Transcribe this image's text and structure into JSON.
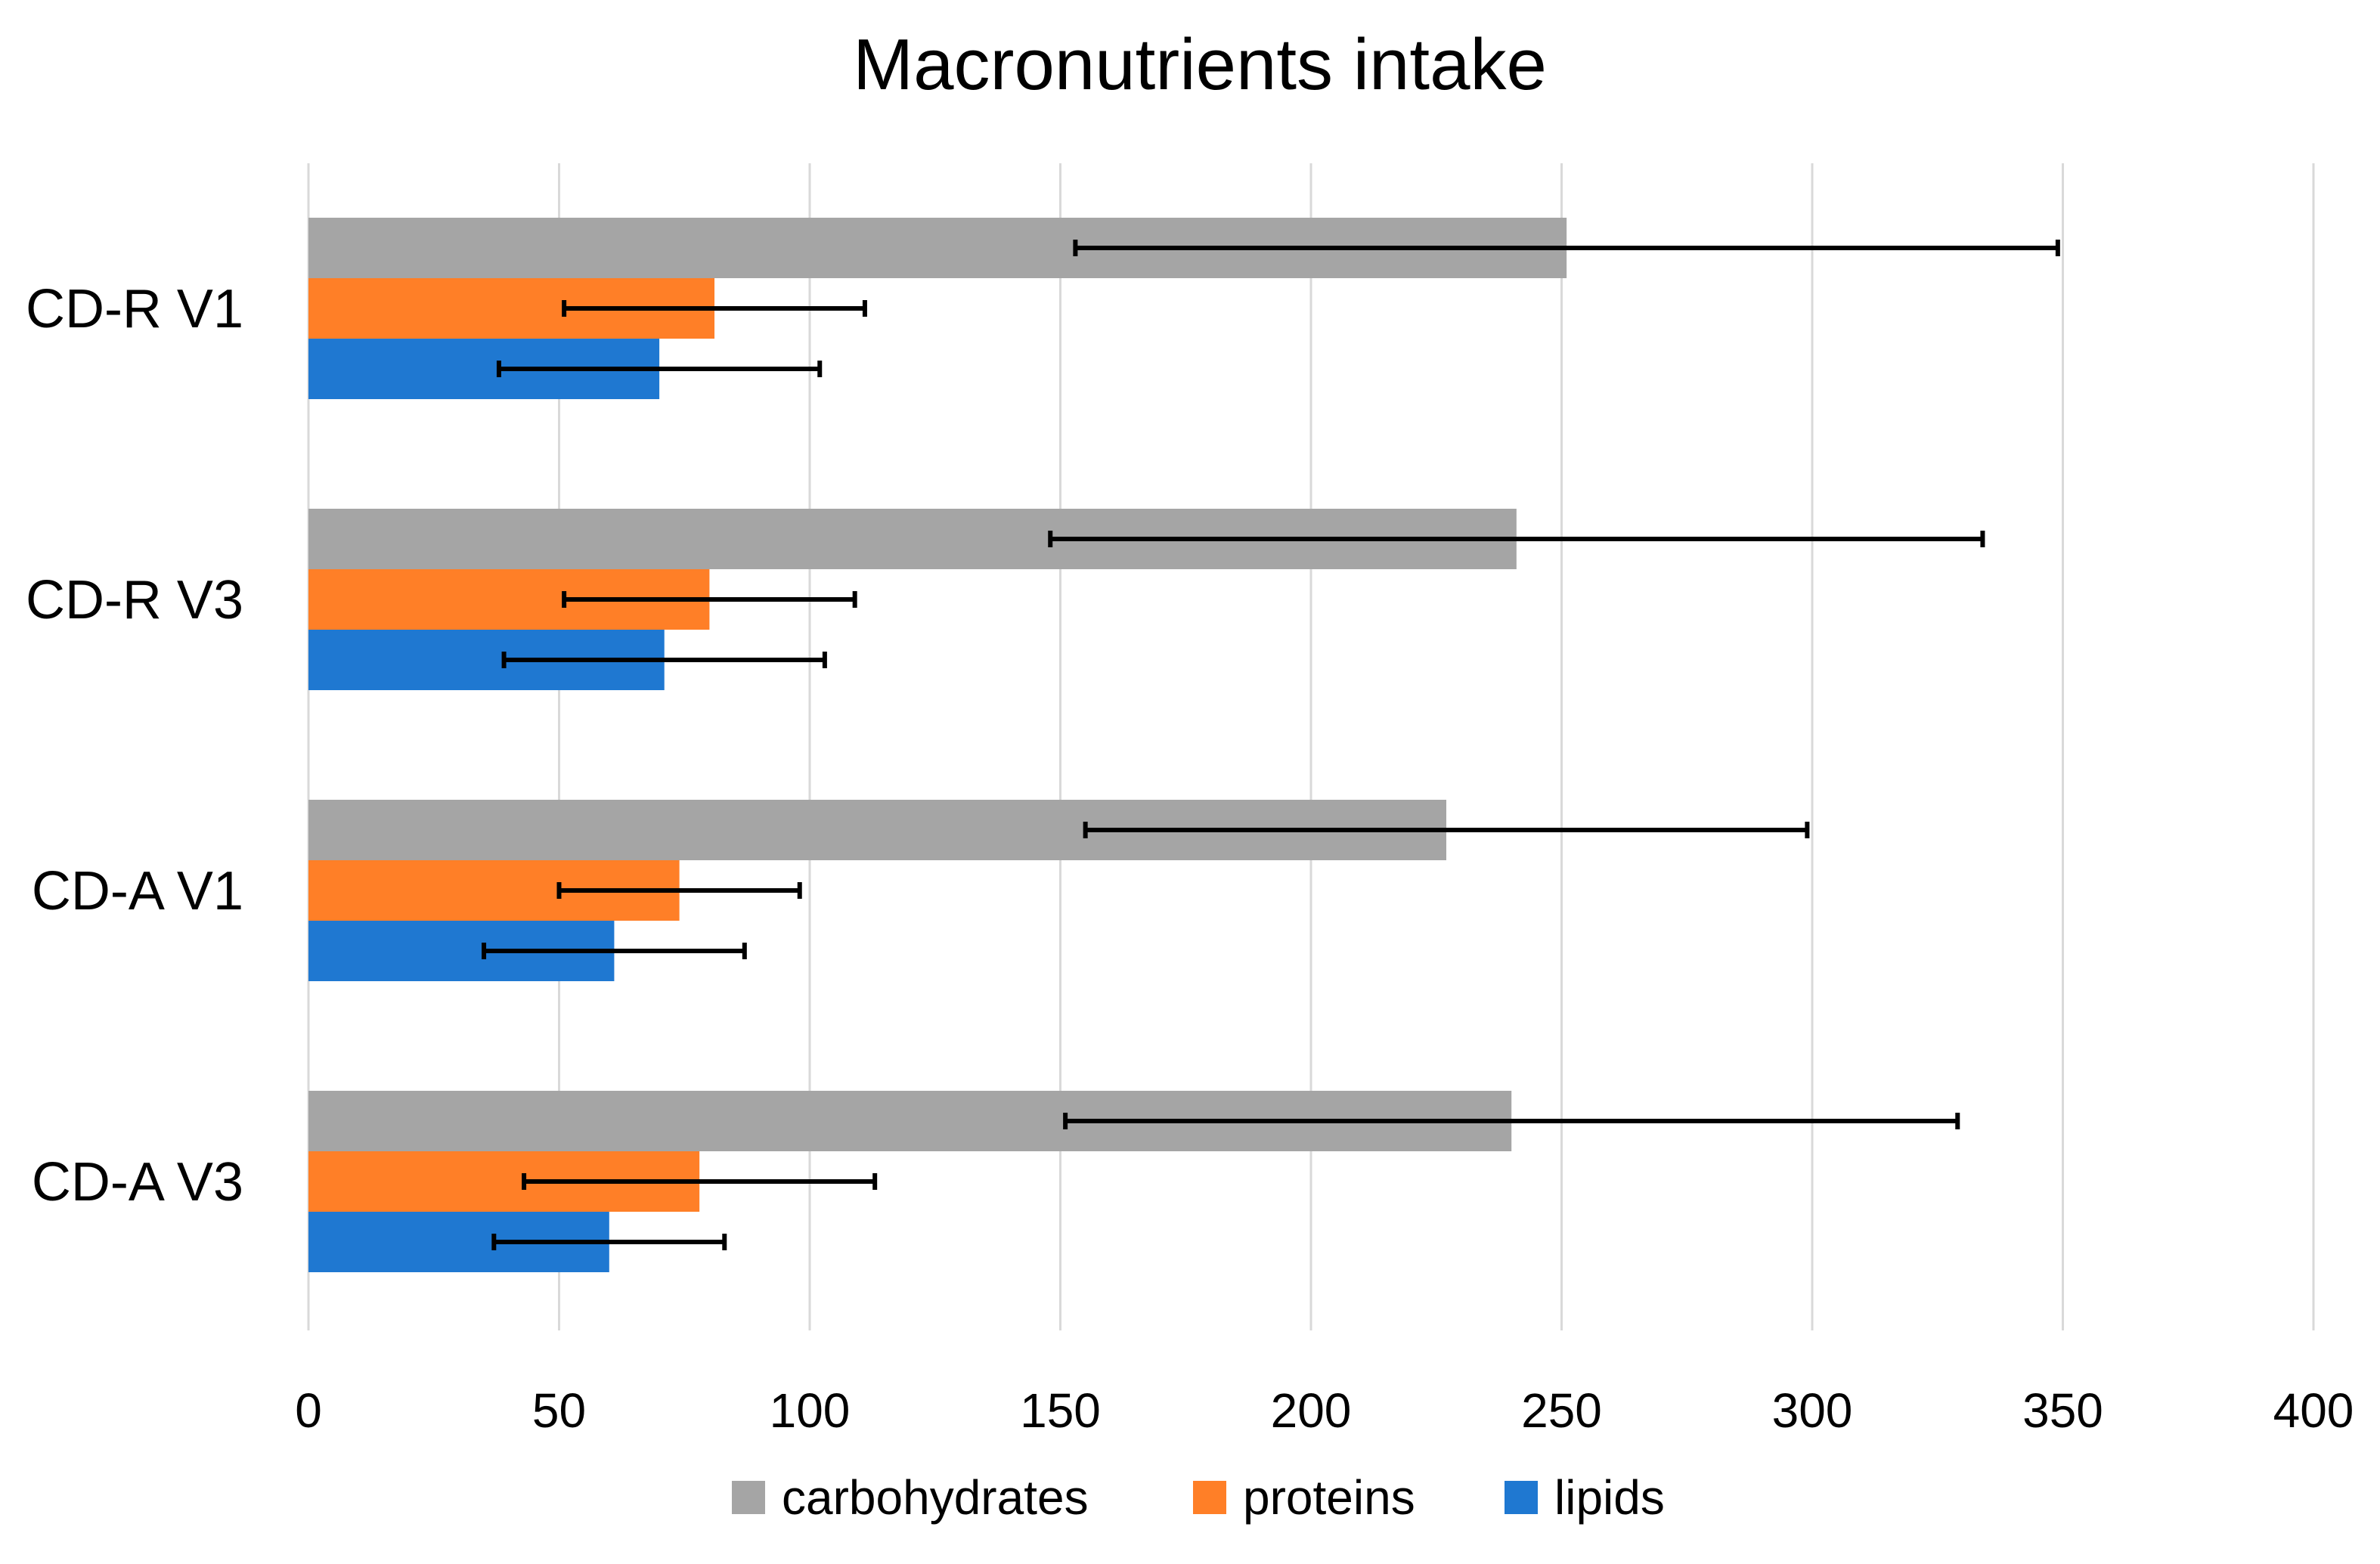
{
  "chart_data": {
    "type": "bar",
    "orientation": "horizontal",
    "title": "Macronutrients intake",
    "xlabel": "",
    "ylabel": "",
    "xlim": [
      0,
      400
    ],
    "xticks": [
      0,
      50,
      100,
      150,
      200,
      250,
      300,
      350,
      400
    ],
    "xtick_labels": [
      "0",
      "50",
      "100",
      "150",
      "200",
      "250",
      "300",
      "350",
      "400"
    ],
    "grid": true,
    "legend_position": "bottom",
    "categories": [
      "CD-R V1",
      "CD-R V3",
      "CD-A V1",
      "CD-A V3"
    ],
    "series": [
      {
        "name": "carbohydrates",
        "color": "#a5a5a5",
        "values": [
          251,
          241,
          227,
          240
        ],
        "error": [
          98,
          93,
          72,
          89
        ]
      },
      {
        "name": "proteins",
        "color": "#ff7f27",
        "values": [
          81,
          80,
          74,
          78
        ],
        "error": [
          30,
          29,
          24,
          35
        ]
      },
      {
        "name": "lipids",
        "color": "#1f78d1",
        "values": [
          70,
          71,
          61,
          60
        ],
        "error": [
          32,
          32,
          26,
          23
        ]
      }
    ]
  }
}
